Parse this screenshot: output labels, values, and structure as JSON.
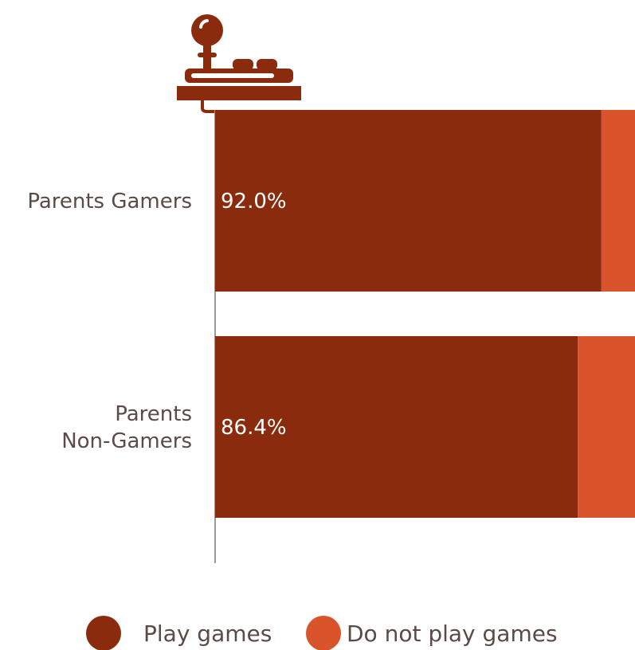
{
  "chart_data": {
    "type": "bar",
    "orientation": "horizontal",
    "stacked": true,
    "categories": [
      [
        "Parents Gamers"
      ],
      [
        "Parents",
        "Non-Gamers"
      ]
    ],
    "series": [
      {
        "name": "Play games",
        "values": [
          92.0,
          86.4
        ],
        "color": "#8b2b0e",
        "labels": [
          "92.0%",
          "86.4%"
        ]
      },
      {
        "name": "Do not play games",
        "values": [
          8.0,
          13.6
        ],
        "color": "#d9542b"
      }
    ],
    "xlim": [
      0,
      100
    ],
    "legend_position": "bottom",
    "icon": "joystick-icon",
    "icon_color": "#8b2b0e",
    "axis_color": "#9a9a9a"
  }
}
